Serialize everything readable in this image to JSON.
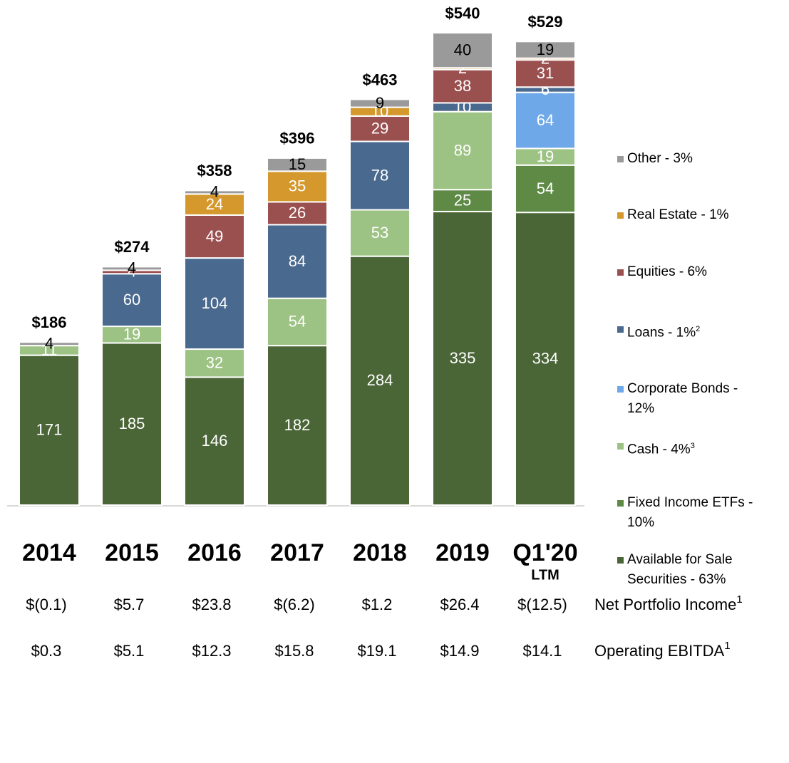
{
  "chart_data": {
    "type": "stacked_bar",
    "categories": [
      "2014",
      "2015",
      "2016",
      "2017",
      "2018",
      "2019",
      "Q1'20"
    ],
    "category_sublabels": [
      null,
      null,
      null,
      null,
      null,
      null,
      "LTM"
    ],
    "series": [
      {
        "name": "Available for Sale Securities - 63%",
        "color": "#4a6536",
        "values": [
          171,
          185,
          146,
          182,
          284,
          335,
          334
        ]
      },
      {
        "name": "Fixed Income ETFs - 10%",
        "color": "#5e8a45",
        "values": [
          null,
          null,
          null,
          null,
          null,
          25,
          54
        ]
      },
      {
        "name": "Cash - 4%",
        "note": "3",
        "color": "#9dc384",
        "values": [
          11,
          19,
          32,
          54,
          53,
          89,
          19
        ]
      },
      {
        "name": "Corporate Bonds - 12%",
        "color": "#6fa8e8",
        "values": [
          null,
          null,
          null,
          null,
          null,
          null,
          64
        ]
      },
      {
        "name": "Loans - 1%",
        "note": "2",
        "color": "#4a698f",
        "values": [
          null,
          60,
          104,
          84,
          78,
          10,
          6
        ]
      },
      {
        "name": "Equities - 6%",
        "color": "#9b5050",
        "values": [
          null,
          4,
          49,
          26,
          29,
          38,
          31
        ]
      },
      {
        "name": "Real Estate - 1%",
        "color": "#d4982c",
        "values": [
          null,
          null,
          24,
          35,
          10,
          2,
          2
        ]
      },
      {
        "name": "Other - 3%",
        "color": "#9a9a9a",
        "values": [
          4,
          4,
          4,
          15,
          9,
          40,
          19
        ]
      }
    ],
    "totals": {
      "values": [
        186,
        274,
        358,
        396,
        463,
        540,
        529
      ],
      "value_labels": [
        "$186",
        "$274",
        "$358",
        "$396",
        "$463",
        "$540",
        "$529"
      ]
    },
    "table": {
      "rows": [
        {
          "label": "Net Portfolio Income",
          "note": "1",
          "values": [
            -0.1,
            5.7,
            23.8,
            -6.2,
            1.2,
            26.4,
            -12.5
          ],
          "value_labels": [
            "$(0.1)",
            "$5.7",
            "$23.8",
            "$(6.2)",
            "$1.2",
            "$26.4",
            "$(12.5)"
          ]
        },
        {
          "label": "Operating EBITDA",
          "note": "1",
          "values": [
            0.3,
            5.1,
            12.3,
            15.8,
            19.1,
            14.9,
            14.1
          ],
          "value_labels": [
            "$0.3",
            "$5.1",
            "$12.3",
            "$15.8",
            "$19.1",
            "$14.9",
            "$14.1"
          ]
        }
      ]
    }
  }
}
